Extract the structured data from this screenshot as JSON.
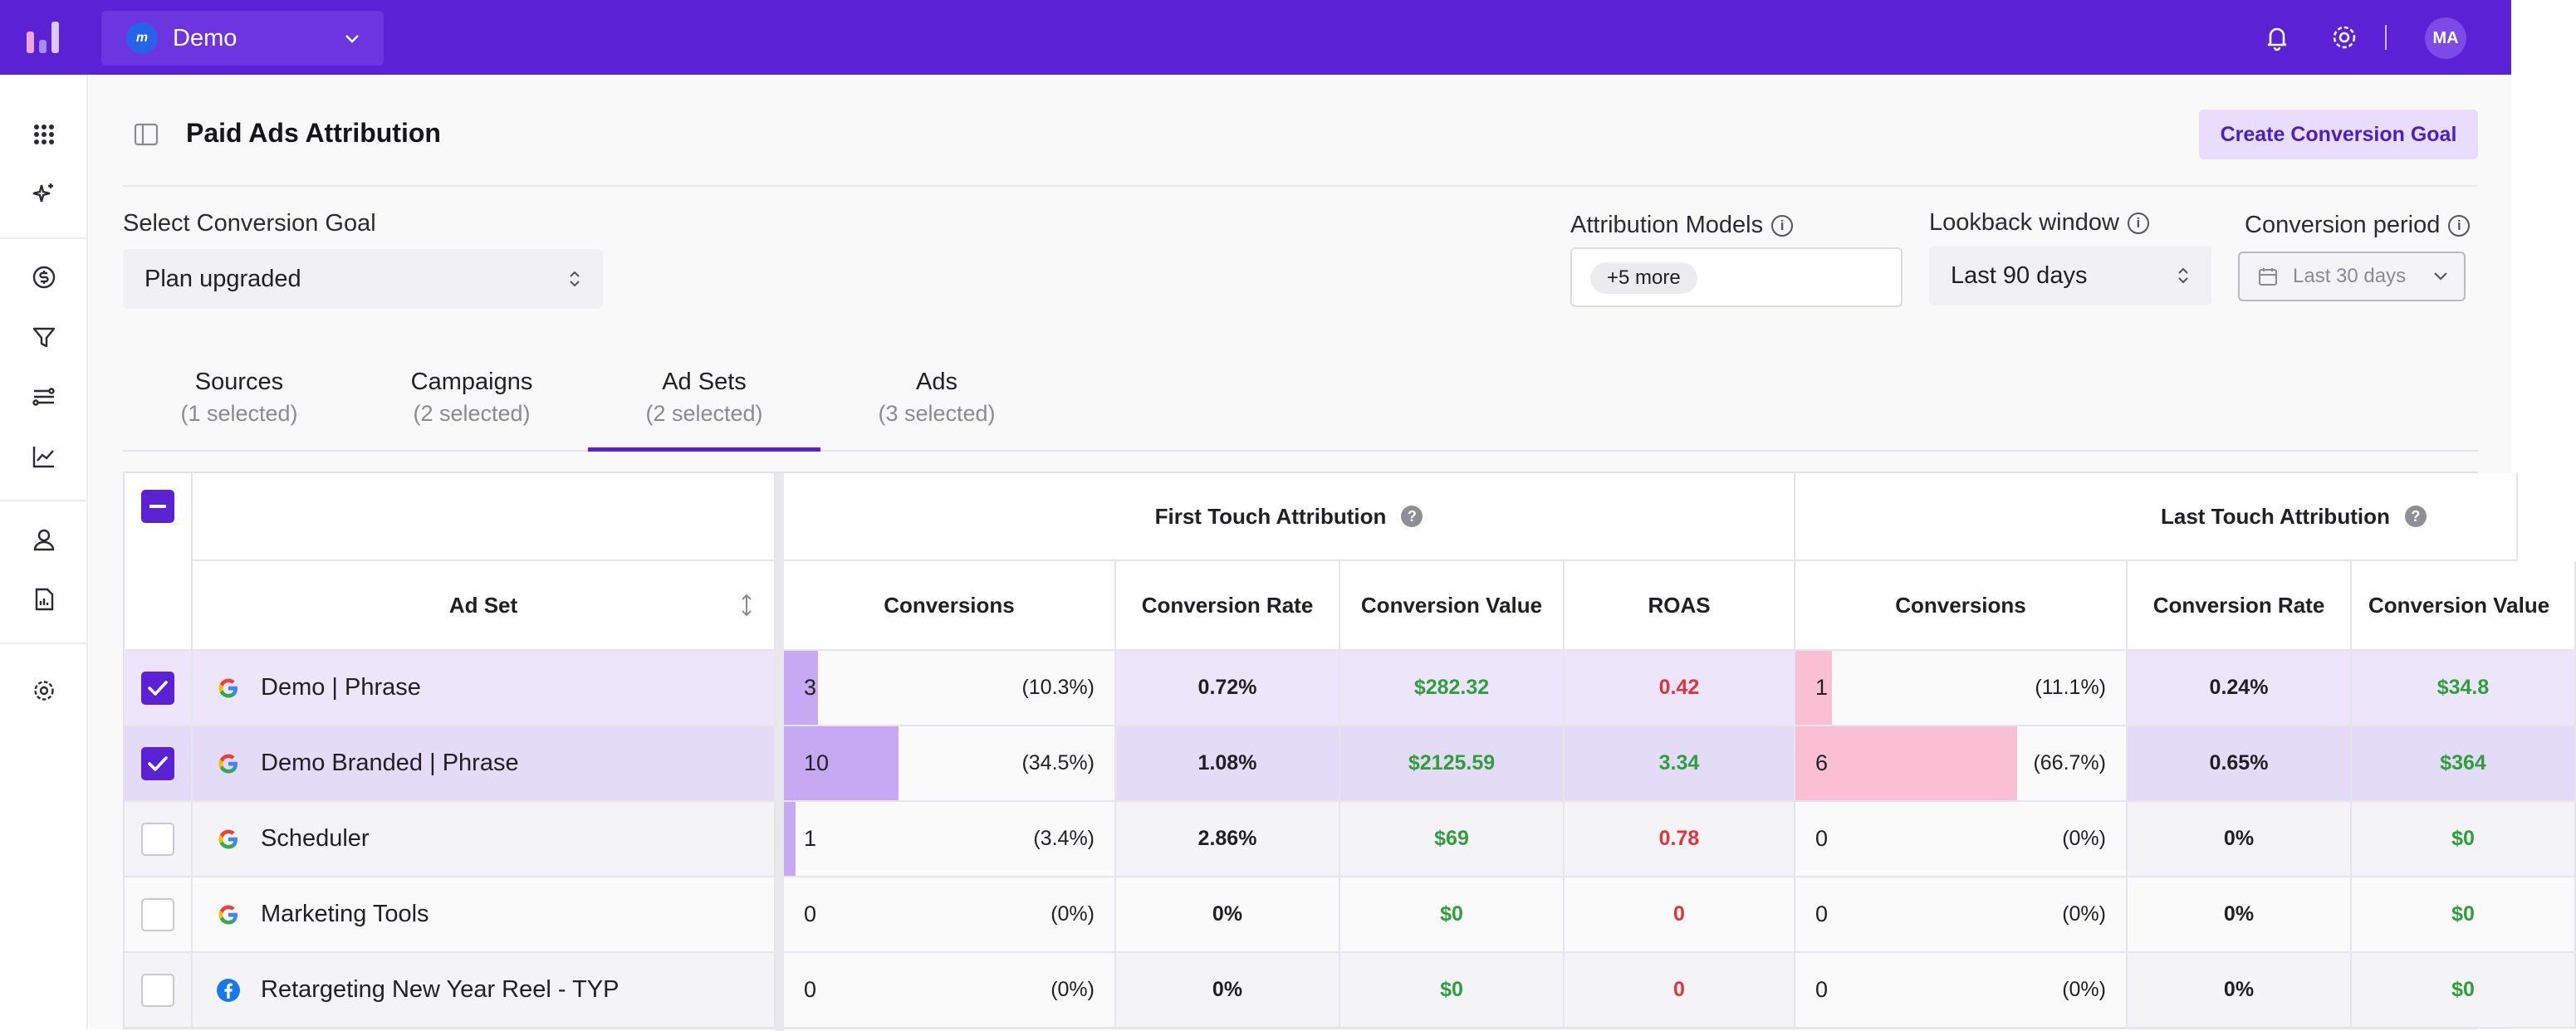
{
  "header": {
    "workspace": "Demo",
    "workspace_initial": "m",
    "user_initials": "MA"
  },
  "page": {
    "title": "Paid Ads Attribution",
    "create_button": "Create Conversion Goal"
  },
  "filters": {
    "goal_label": "Select Conversion Goal",
    "goal_value": "Plan upgraded",
    "models_label": "Attribution Models",
    "models_chip": "+5 more",
    "lookback_label": "Lookback window",
    "lookback_value": "Last 90 days",
    "period_label": "Conversion period",
    "period_value": "Last 30 days",
    "info_glyph": "i"
  },
  "tabs": [
    {
      "label": "Sources",
      "sub": "(1 selected)"
    },
    {
      "label": "Campaigns",
      "sub": "(2 selected)"
    },
    {
      "label": "Ad Sets",
      "sub": "(2 selected)"
    },
    {
      "label": "Ads",
      "sub": "(3 selected)"
    }
  ],
  "table": {
    "help_glyph": "?",
    "groups": [
      "First Touch Attribution",
      "Last Touch Attribution"
    ],
    "name_header": "Ad Set",
    "columns": [
      "Conversions",
      "Conversion Rate",
      "Conversion Value",
      "ROAS",
      "Conversions",
      "Conversion Rate",
      "Conversion Value"
    ],
    "rows": [
      {
        "name": "Demo | Phrase",
        "source": "google",
        "selected": true,
        "ft_conv": "3",
        "ft_pct": "(10.3%)",
        "ft_share": 0.103,
        "ft_rate": "0.72%",
        "ft_value": "$282.32",
        "ft_roas": "0.42",
        "lt_conv": "1",
        "lt_pct": "(11.1%)",
        "lt_share": 0.111,
        "lt_rate": "0.24%",
        "lt_value": "$34.8"
      },
      {
        "name": "Demo Branded | Phrase",
        "source": "google",
        "selected": true,
        "ft_conv": "10",
        "ft_pct": "(34.5%)",
        "ft_share": 0.345,
        "ft_rate": "1.08%",
        "ft_value": "$2125.59",
        "ft_roas": "3.34",
        "lt_conv": "6",
        "lt_pct": "(66.7%)",
        "lt_share": 0.667,
        "lt_rate": "0.65%",
        "lt_value": "$364"
      },
      {
        "name": "Scheduler",
        "source": "google",
        "selected": false,
        "ft_conv": "1",
        "ft_pct": "(3.4%)",
        "ft_share": 0.034,
        "ft_rate": "2.86%",
        "ft_value": "$69",
        "ft_roas": "0.78",
        "lt_conv": "0",
        "lt_pct": "(0%)",
        "lt_share": 0,
        "lt_rate": "0%",
        "lt_value": "$0"
      },
      {
        "name": "Marketing Tools",
        "source": "google",
        "selected": false,
        "ft_conv": "0",
        "ft_pct": "(0%)",
        "ft_share": 0,
        "ft_rate": "0%",
        "ft_value": "$0",
        "ft_roas": "0",
        "lt_conv": "0",
        "lt_pct": "(0%)",
        "lt_share": 0,
        "lt_rate": "0%",
        "lt_value": "$0"
      },
      {
        "name": "Retargeting New Year Reel - TYP",
        "source": "facebook",
        "selected": false,
        "ft_conv": "0",
        "ft_pct": "(0%)",
        "ft_share": 0,
        "ft_rate": "0%",
        "ft_value": "$0",
        "ft_roas": "0",
        "lt_conv": "0",
        "lt_pct": "(0%)",
        "lt_share": 0,
        "lt_rate": "0%",
        "lt_value": "$0"
      }
    ]
  },
  "colors": {
    "brand": "#5b21d4",
    "first_touch_bar": "#c6a9f2",
    "last_touch_bar": "#fbbfd3",
    "selected_row": "#ede6fb",
    "selected_row_alt": "#e4dcf6",
    "row_plain": "#f4f4f6",
    "row_plain_alt": "#fafafa"
  },
  "icons": {
    "sidebar": [
      "grid-icon",
      "sparkles-icon",
      "dollar-icon",
      "filter-icon",
      "route-icon",
      "chart-line-icon",
      "user-icon",
      "report-icon",
      "settings-icon"
    ]
  }
}
